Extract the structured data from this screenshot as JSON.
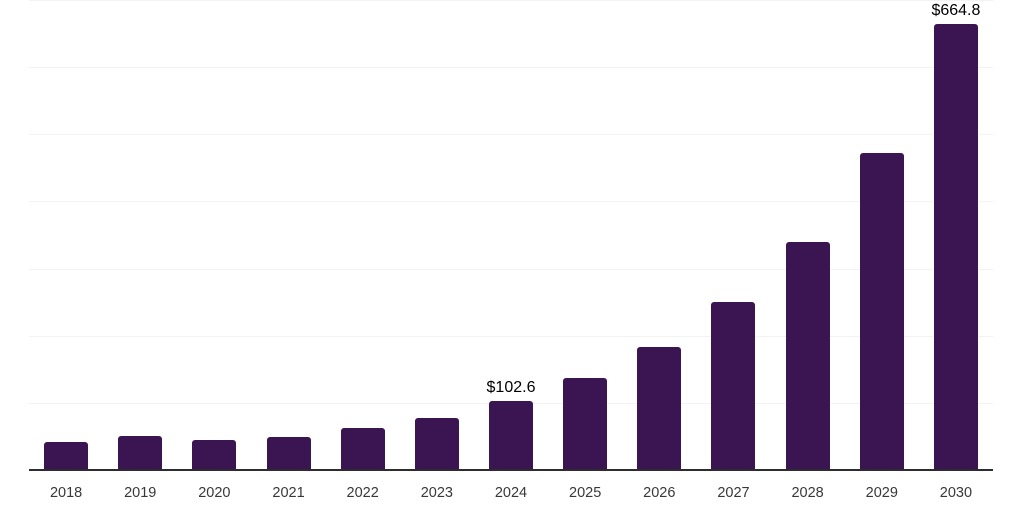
{
  "chart_data": {
    "type": "bar",
    "title": "",
    "xlabel": "",
    "ylabel": "",
    "categories": [
      "2018",
      "2019",
      "2020",
      "2021",
      "2022",
      "2023",
      "2024",
      "2025",
      "2026",
      "2027",
      "2028",
      "2029",
      "2030"
    ],
    "values": [
      41,
      50,
      45,
      49,
      62,
      77,
      102.6,
      137,
      183,
      250,
      339,
      472,
      664.8
    ],
    "data_labels": [
      {
        "index": 6,
        "text": "$102.6"
      },
      {
        "index": 12,
        "text": "$664.8"
      }
    ],
    "ylim": [
      0,
      700
    ],
    "grid_interval": 100,
    "grid_visible": true,
    "legend": "none",
    "colors": {
      "bar": "#3A1551",
      "axis_line": "#2D2D2D",
      "gridline": "#F3F3F3",
      "tick_label": "#383838",
      "value_label": "#000000",
      "background": "#FFFFFF"
    }
  }
}
